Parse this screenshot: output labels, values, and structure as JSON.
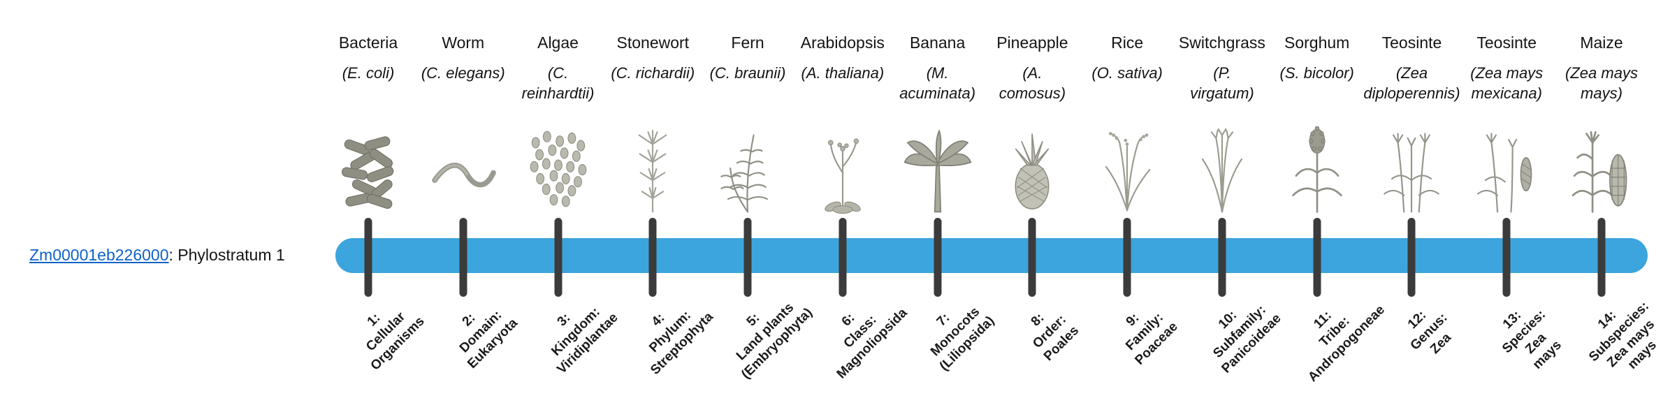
{
  "gene": {
    "id": "Zm00001eb226000",
    "suffix": ": Phylostratum 1"
  },
  "colors": {
    "timeline_bar": "#3da5dd",
    "tick": "#3b3b3b",
    "link": "#0f62c8"
  },
  "organisms": [
    {
      "common_name": "Bacteria",
      "scientific_name": "(E. coli)",
      "icon": "bacteria-icon",
      "stratum_label": "1:\nCellular\nOrganisms"
    },
    {
      "common_name": "Worm",
      "scientific_name": "(C. elegans)",
      "icon": "worm-icon",
      "stratum_label": "2:\nDomain:\nEukaryota"
    },
    {
      "common_name": "Algae",
      "scientific_name": "(C.\nreinhardtii)",
      "icon": "algae-icon",
      "stratum_label": "3:\nKingdom:\nViridiplantae"
    },
    {
      "common_name": "Stonewort",
      "scientific_name": "(C. richardii)",
      "icon": "stonewort-icon",
      "stratum_label": "4:\nPhylum:\nStreptophyta"
    },
    {
      "common_name": "Fern",
      "scientific_name": "(C. braunii)",
      "icon": "fern-icon",
      "stratum_label": "5:\nLand plants\n(Embryophyta)"
    },
    {
      "common_name": "Arabidopsis",
      "scientific_name": "(A. thaliana)",
      "icon": "arabidopsis-icon",
      "stratum_label": "6:\nClass:\nMagnoliopsida"
    },
    {
      "common_name": "Banana",
      "scientific_name": "(M.\nacuminata)",
      "icon": "banana-icon",
      "stratum_label": "7:\nMonocots\n(Liliopsida)"
    },
    {
      "common_name": "Pineapple",
      "scientific_name": "(A.\ncomosus)",
      "icon": "pineapple-icon",
      "stratum_label": "8:\nOrder:\nPoales"
    },
    {
      "common_name": "Rice",
      "scientific_name": "(O. sativa)",
      "icon": "rice-icon",
      "stratum_label": "9:\nFamily:\nPoaceae"
    },
    {
      "common_name": "Switchgrass",
      "scientific_name": "(P.\nvirgatum)",
      "icon": "switchgrass-icon",
      "stratum_label": "10:\nSubfamily:\nPanicoideae"
    },
    {
      "common_name": "Sorghum",
      "scientific_name": "(S. bicolor)",
      "icon": "sorghum-icon",
      "stratum_label": "11:\nTribe:\nAndropogoneae"
    },
    {
      "common_name": "Teosinte",
      "scientific_name": "(Zea\ndiploperennis)",
      "icon": "teosinte-icon",
      "stratum_label": "12:\nGenus:\nZea"
    },
    {
      "common_name": "Teosinte",
      "scientific_name": "(Zea mays\nmexicana)",
      "icon": "teosinte-mexicana-icon",
      "stratum_label": "13:\nSpecies:\nZea\nmays"
    },
    {
      "common_name": "Maize",
      "scientific_name": "(Zea mays\nmays)",
      "icon": "maize-icon",
      "stratum_label": "14:\nSubspecies:\nZea mays\nmays"
    }
  ]
}
